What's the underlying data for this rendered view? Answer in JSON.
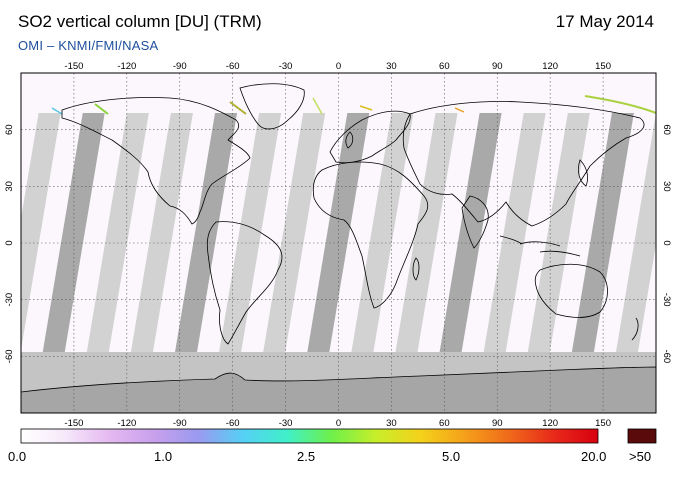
{
  "header": {
    "title": "SO2 vertical column [DU] (TRM)",
    "date": "17 May 2014",
    "credit": "OMI  –  KNMI/FMI/NASA"
  },
  "map": {
    "lon_ticks": [
      "-150",
      "-120",
      "-90",
      "-60",
      "-30",
      "0",
      "30",
      "60",
      "90",
      "120",
      "150"
    ],
    "lat_ticks": [
      "60",
      "30",
      "0",
      "-30",
      "-60"
    ],
    "colors": {
      "background": "#fbf7fc",
      "swath_light": "#d2d2d2",
      "swath_dark": "#a9a9a9",
      "polar_light": "#c4c4c4",
      "polar_dark": "#a6a6a6",
      "coastline": "#000000",
      "grid": "#555555"
    }
  },
  "colorbar": {
    "labels": [
      "0.0",
      "1.0",
      "2.5",
      "5.0",
      "20.0",
      ">50"
    ],
    "stops": [
      "#ffffff",
      "#f6e8fa",
      "#e4b9f0",
      "#c8a0ec",
      "#9a9af0",
      "#55d0f5",
      "#40f0c8",
      "#6ef04a",
      "#c8ee2a",
      "#f4d21a",
      "#f5a01a",
      "#f06a1a",
      "#e82a1a",
      "#d80010"
    ],
    "overflow_color": "#5a0a0a"
  }
}
